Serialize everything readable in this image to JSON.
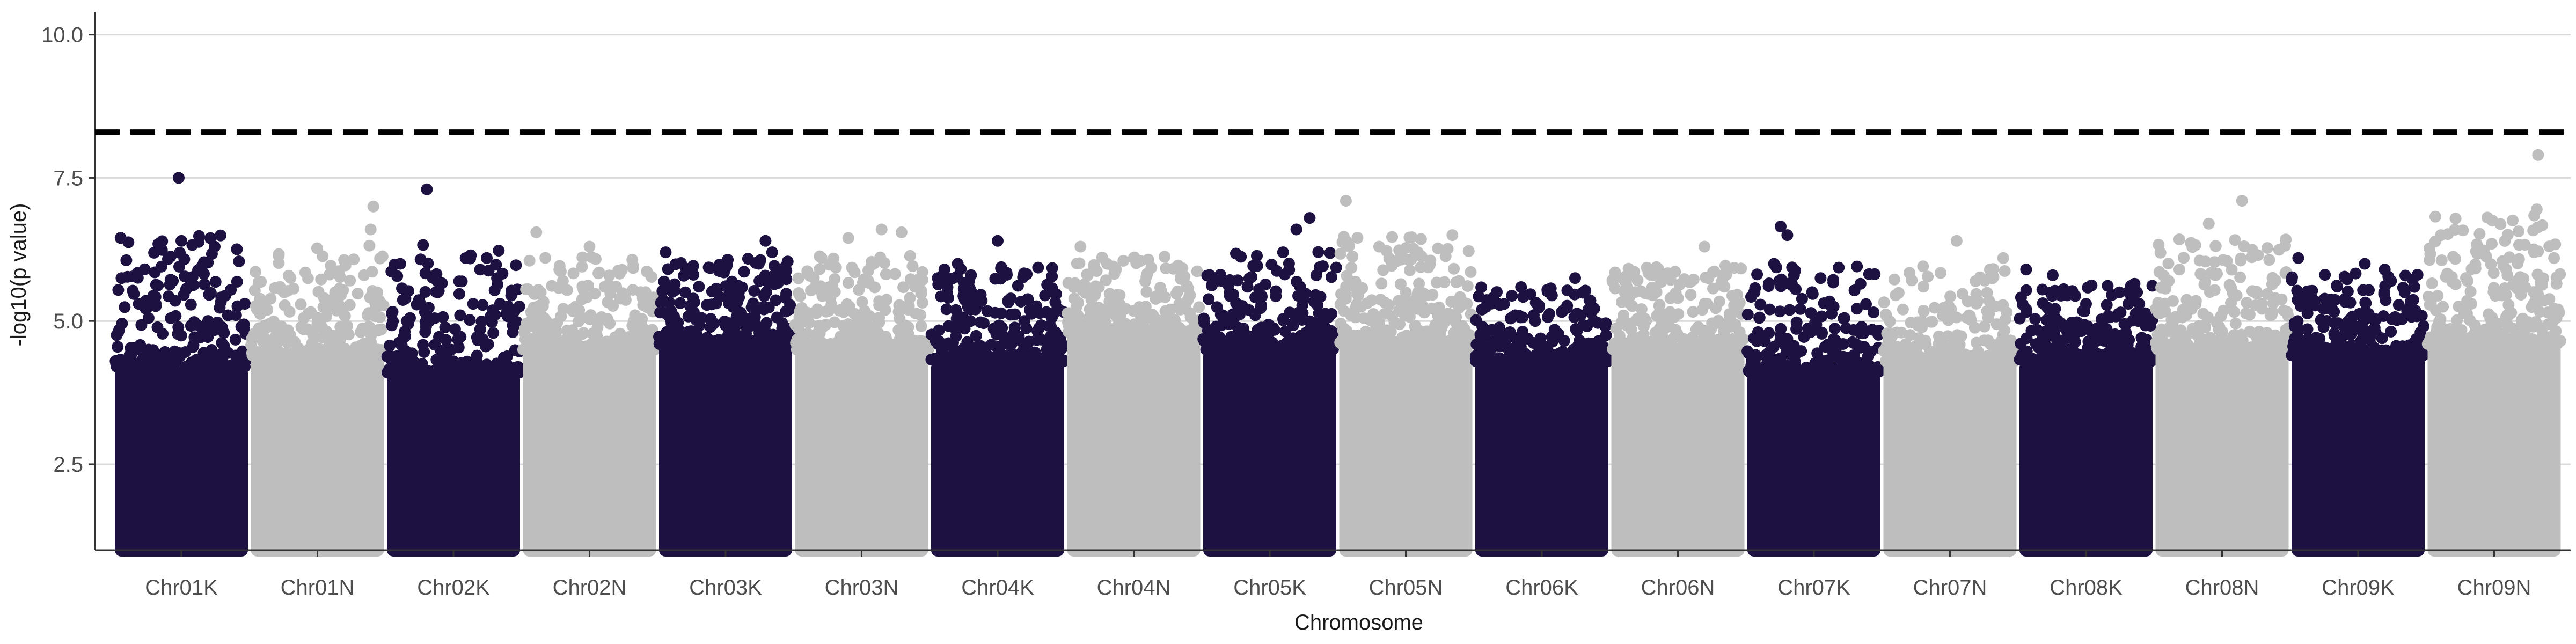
{
  "chart_data": {
    "type": "scatter",
    "subtype": "manhattan",
    "title": "",
    "xlabel": "Chromosome",
    "ylabel": "-log10(p value)",
    "ylim": [
      1.0,
      10.4
    ],
    "yticks": [
      2.5,
      5.0,
      7.5,
      10.0
    ],
    "ytick_labels": [
      "2.5",
      "5.0",
      "7.5",
      "10.0"
    ],
    "grid": {
      "horizontal_major": true,
      "vertical": false
    },
    "legend": "none",
    "colors": {
      "odd": "#1c1141",
      "even": "#bebebe",
      "threshold": "#000000",
      "grid": "#d9d9d9",
      "axis": "#333333"
    },
    "threshold": {
      "value": 8.3,
      "style": "dashed"
    },
    "categories": [
      "Chr01K",
      "Chr01N",
      "Chr02K",
      "Chr02N",
      "Chr03K",
      "Chr03N",
      "Chr04K",
      "Chr04N",
      "Chr05K",
      "Chr05N",
      "Chr06K",
      "Chr06N",
      "Chr07K",
      "Chr07N",
      "Chr08K",
      "Chr08N",
      "Chr09K",
      "Chr09N"
    ],
    "series": [
      {
        "chromosome": "Chr01K",
        "dense_top": 4.2,
        "max": 7.5,
        "points": [
          [
            0.05,
            5.75
          ],
          [
            0.18,
            5.3
          ],
          [
            0.3,
            5.85
          ],
          [
            0.35,
            5.95
          ],
          [
            0.42,
            5.05
          ],
          [
            0.5,
            6.4
          ],
          [
            0.75,
            6.3
          ],
          [
            0.85,
            5.1
          ],
          [
            0.95,
            4.9
          ],
          [
            0.48,
            7.5
          ]
        ]
      },
      {
        "chromosome": "Chr01N",
        "dense_top": 4.4,
        "max": 7.0,
        "points": [
          [
            0.1,
            5.3
          ],
          [
            0.25,
            5.5
          ],
          [
            0.55,
            5.4
          ],
          [
            0.85,
            5.8
          ],
          [
            0.9,
            6.6
          ],
          [
            0.92,
            7.0
          ],
          [
            0.95,
            5.5
          ]
        ]
      },
      {
        "chromosome": "Chr02K",
        "dense_top": 4.1,
        "max": 7.3,
        "points": [
          [
            0.1,
            6.0
          ],
          [
            0.15,
            5.0
          ],
          [
            0.3,
            7.3
          ],
          [
            0.55,
            5.1
          ],
          [
            0.7,
            5.9
          ],
          [
            0.75,
            6.1
          ],
          [
            0.85,
            5.3
          ]
        ]
      },
      {
        "chromosome": "Chr02N",
        "dense_top": 4.5,
        "max": 6.55,
        "points": [
          [
            0.1,
            6.55
          ],
          [
            0.3,
            5.7
          ],
          [
            0.5,
            6.3
          ],
          [
            0.7,
            5.6
          ],
          [
            0.9,
            5.4
          ]
        ]
      },
      {
        "chromosome": "Chr03K",
        "dense_top": 4.6,
        "max": 6.4,
        "points": [
          [
            0.05,
            6.2
          ],
          [
            0.3,
            5.6
          ],
          [
            0.45,
            5.9
          ],
          [
            0.6,
            5.5
          ],
          [
            0.75,
            6.0
          ],
          [
            0.8,
            6.4
          ],
          [
            0.85,
            6.2
          ],
          [
            0.9,
            5.9
          ]
        ]
      },
      {
        "chromosome": "Chr03N",
        "dense_top": 4.5,
        "max": 6.6,
        "points": [
          [
            0.2,
            5.5
          ],
          [
            0.4,
            6.45
          ],
          [
            0.55,
            5.7
          ],
          [
            0.65,
            6.6
          ],
          [
            0.8,
            6.55
          ],
          [
            0.9,
            5.6
          ]
        ]
      },
      {
        "chromosome": "Chr04K",
        "dense_top": 4.3,
        "max": 6.4,
        "points": [
          [
            0.05,
            5.75
          ],
          [
            0.1,
            5.9
          ],
          [
            0.2,
            6.0
          ],
          [
            0.3,
            5.8
          ],
          [
            0.5,
            6.4
          ],
          [
            0.7,
            5.0
          ],
          [
            0.9,
            4.9
          ]
        ]
      },
      {
        "chromosome": "Chr04N",
        "dense_top": 4.8,
        "max": 6.3,
        "points": [
          [
            0.1,
            6.3
          ],
          [
            0.3,
            6.0
          ],
          [
            0.5,
            6.1
          ],
          [
            0.55,
            6.05
          ],
          [
            0.85,
            5.2
          ]
        ]
      },
      {
        "chromosome": "Chr05K",
        "dense_top": 4.5,
        "max": 6.8,
        "points": [
          [
            0.05,
            5.8
          ],
          [
            0.1,
            5.7
          ],
          [
            0.2,
            5.5
          ],
          [
            0.6,
            6.2
          ],
          [
            0.7,
            6.6
          ],
          [
            0.8,
            6.8
          ],
          [
            0.85,
            5.8
          ]
        ]
      },
      {
        "chromosome": "Chr05N",
        "dense_top": 4.6,
        "max": 7.1,
        "points": [
          [
            0.05,
            7.1
          ],
          [
            0.3,
            6.3
          ],
          [
            0.5,
            5.5
          ],
          [
            0.85,
            6.5
          ],
          [
            0.9,
            5.7
          ]
        ]
      },
      {
        "chromosome": "Chr06K",
        "dense_top": 4.3,
        "max": 5.75,
        "points": [
          [
            0.05,
            5.2
          ],
          [
            0.3,
            5.1
          ],
          [
            0.45,
            5.0
          ],
          [
            0.75,
            5.75
          ],
          [
            0.85,
            5.2
          ]
        ]
      },
      {
        "chromosome": "Chr06N",
        "dense_top": 4.5,
        "max": 6.3,
        "points": [
          [
            0.1,
            5.5
          ],
          [
            0.3,
            5.8
          ],
          [
            0.5,
            5.4
          ],
          [
            0.7,
            6.3
          ],
          [
            0.85,
            5.6
          ]
        ]
      },
      {
        "chromosome": "Chr07K",
        "dense_top": 4.1,
        "max": 6.65,
        "points": [
          [
            0.05,
            5.5
          ],
          [
            0.2,
            6.0
          ],
          [
            0.25,
            6.65
          ],
          [
            0.3,
            6.5
          ],
          [
            0.35,
            5.8
          ],
          [
            0.55,
            5.75
          ],
          [
            0.85,
            5.65
          ]
        ]
      },
      {
        "chromosome": "Chr07N",
        "dense_top": 4.3,
        "max": 6.4,
        "points": [
          [
            0.1,
            4.8
          ],
          [
            0.3,
            5.6
          ],
          [
            0.5,
            5.2
          ],
          [
            0.55,
            6.4
          ],
          [
            0.8,
            5.9
          ],
          [
            0.9,
            6.1
          ]
        ]
      },
      {
        "chromosome": "Chr08K",
        "dense_top": 4.3,
        "max": 5.9,
        "points": [
          [
            0.05,
            5.9
          ],
          [
            0.25,
            5.8
          ],
          [
            0.5,
            5.3
          ],
          [
            0.75,
            5.5
          ],
          [
            0.9,
            5.3
          ]
        ]
      },
      {
        "chromosome": "Chr08N",
        "dense_top": 4.5,
        "max": 7.1,
        "points": [
          [
            0.1,
            5.7
          ],
          [
            0.4,
            6.7
          ],
          [
            0.45,
            5.8
          ],
          [
            0.65,
            7.1
          ],
          [
            0.9,
            5.4
          ]
        ]
      },
      {
        "chromosome": "Chr09K",
        "dense_top": 4.4,
        "max": 6.1,
        "points": [
          [
            0.05,
            6.1
          ],
          [
            0.3,
            5.3
          ],
          [
            0.55,
            6.0
          ],
          [
            0.7,
            5.9
          ],
          [
            0.85,
            5.5
          ]
        ]
      },
      {
        "chromosome": "Chr09N",
        "dense_top": 4.6,
        "max": 7.9,
        "points": [
          [
            0.1,
            6.5
          ],
          [
            0.3,
            5.7
          ],
          [
            0.6,
            5.8
          ],
          [
            0.8,
            6.2
          ],
          [
            0.82,
            6.95
          ],
          [
            0.83,
            7.9
          ],
          [
            0.95,
            6.1
          ]
        ]
      }
    ]
  }
}
